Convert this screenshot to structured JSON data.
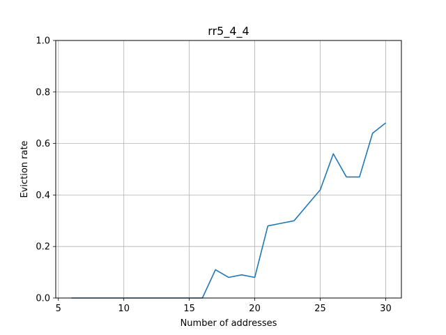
{
  "chart_data": {
    "type": "line",
    "title": "rr5_4_4",
    "xlabel": "Number of addresses",
    "ylabel": "Eviction rate",
    "xlim": [
      4.8,
      31.2
    ],
    "ylim": [
      0.0,
      1.0
    ],
    "xticks": [
      5,
      10,
      15,
      20,
      25,
      30
    ],
    "xtick_labels": [
      "5",
      "10",
      "15",
      "20",
      "25",
      "30"
    ],
    "yticks": [
      0.0,
      0.2,
      0.4,
      0.6,
      0.8,
      1.0
    ],
    "ytick_labels": [
      "0.0",
      "0.2",
      "0.4",
      "0.6",
      "0.8",
      "1.0"
    ],
    "grid": true,
    "series": [
      {
        "color": "#1f77b4",
        "x": [
          6,
          7,
          8,
          9,
          10,
          11,
          12,
          13,
          14,
          15,
          16,
          17,
          18,
          19,
          20,
          21,
          22,
          23,
          24,
          25,
          26,
          27,
          28,
          29,
          30
        ],
        "y": [
          0,
          0,
          0,
          0,
          0,
          0,
          0,
          0,
          0,
          0,
          0,
          0.11,
          0.08,
          0.09,
          0.08,
          0.28,
          0.29,
          0.3,
          0.36,
          0.42,
          0.56,
          0.47,
          0.47,
          0.64,
          0.68
        ]
      }
    ]
  }
}
